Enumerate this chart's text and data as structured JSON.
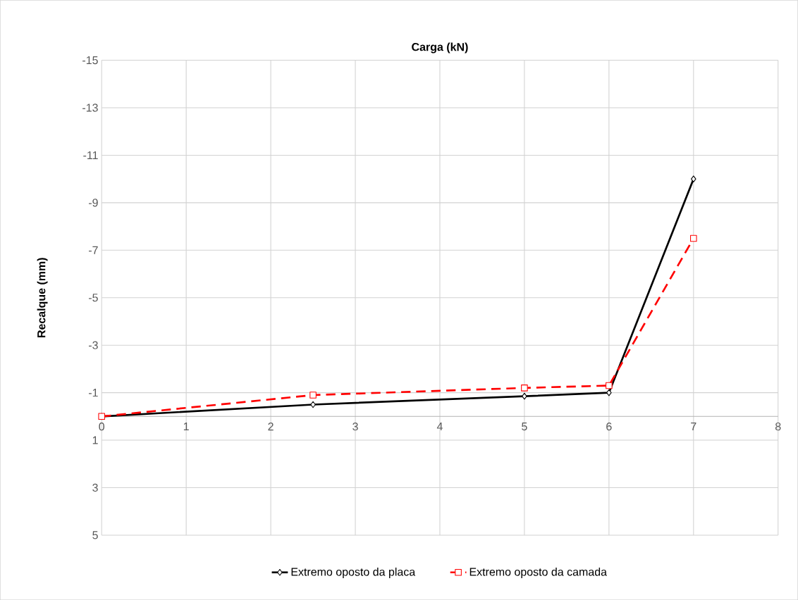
{
  "chart_data": {
    "type": "line",
    "title": "Carga (kN)",
    "ylabel": "Recalque (mm)",
    "xlim": [
      0,
      8
    ],
    "xticks": [
      0,
      1,
      2,
      3,
      4,
      5,
      6,
      7,
      8
    ],
    "ylim": [
      5,
      -15
    ],
    "yticks": [
      -15,
      -13,
      -11,
      -9,
      -7,
      -5,
      -3,
      -1,
      1,
      3,
      5
    ],
    "grid": true,
    "legend": "bottom",
    "series": [
      {
        "name": "Extremo oposto da placa",
        "color": "#000000",
        "marker": "diamond",
        "line_style": "solid",
        "x": [
          0,
          2.5,
          5,
          6,
          7
        ],
        "values": [
          0,
          -0.5,
          -0.85,
          -1.0,
          -10.0
        ]
      },
      {
        "name": "Extremo oposto da camada",
        "color": "#ff0000",
        "marker": "square",
        "line_style": "dashed",
        "x": [
          0,
          2.5,
          5,
          6,
          7
        ],
        "values": [
          0,
          -0.9,
          -1.2,
          -1.3,
          -7.5
        ]
      }
    ]
  }
}
